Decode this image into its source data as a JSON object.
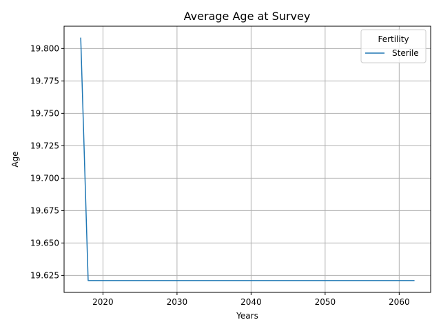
{
  "chart_data": {
    "type": "line",
    "title": "Average Age at Survey",
    "xlabel": "Years",
    "ylabel": "Age",
    "xlim": [
      2014.75,
      2064.25
    ],
    "ylim": [
      19.6119,
      19.8172
    ],
    "xticks": [
      2020,
      2030,
      2040,
      2050,
      2060
    ],
    "yticks": [
      19.625,
      19.65,
      19.675,
      19.7,
      19.725,
      19.75,
      19.775,
      19.8
    ],
    "ytick_decimals": 3,
    "grid": true,
    "legend": {
      "title": "Fertility",
      "placement": "top-right"
    },
    "series": [
      {
        "name": "Sterile",
        "color": "#1f77b4",
        "x": [
          2017,
          2018,
          2019,
          2020,
          2021,
          2022,
          2023,
          2024,
          2025,
          2026,
          2027,
          2028,
          2029,
          2030,
          2031,
          2032,
          2033,
          2034,
          2035,
          2036,
          2037,
          2038,
          2039,
          2040,
          2041,
          2042,
          2043,
          2044,
          2045,
          2046,
          2047,
          2048,
          2049,
          2050,
          2051,
          2052,
          2053,
          2054,
          2055,
          2056,
          2057,
          2058,
          2059,
          2060,
          2061,
          2062
        ],
        "y": [
          19.808,
          19.621,
          19.621,
          19.621,
          19.621,
          19.621,
          19.621,
          19.621,
          19.621,
          19.621,
          19.621,
          19.621,
          19.621,
          19.621,
          19.621,
          19.621,
          19.621,
          19.621,
          19.621,
          19.621,
          19.621,
          19.621,
          19.621,
          19.621,
          19.621,
          19.621,
          19.621,
          19.621,
          19.621,
          19.621,
          19.621,
          19.621,
          19.621,
          19.621,
          19.621,
          19.621,
          19.621,
          19.621,
          19.621,
          19.621,
          19.621,
          19.621,
          19.621,
          19.621,
          19.621,
          19.621
        ]
      }
    ]
  }
}
